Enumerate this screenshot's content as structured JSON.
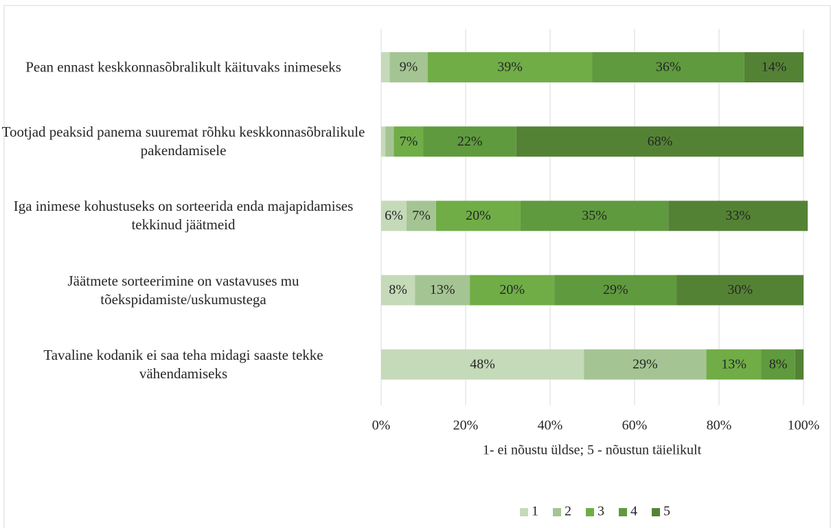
{
  "chart_data": {
    "type": "stacked_barh",
    "categories": [
      "Pean ennast keskkonnasõbralikult käituvaks inimeseks",
      "Tootjad peaksid panema suuremat rõhku keskkonnasõbralikule pakendamisele",
      "Iga inimese kohustuseks on sorteerida enda majapidamises tekkinud jäätmeid",
      "Jäätmete sorteerimine on vastavuses mu tõekspidamiste/uskumustega",
      "Tavaline kodanik ei saa teha midagi saaste tekke vähendamiseks"
    ],
    "series": [
      {
        "name": "1",
        "color": "#c5dab9",
        "values": [
          2,
          1,
          6,
          8,
          48
        ],
        "value_labels": [
          null,
          null,
          "6%",
          "8%",
          "48%"
        ]
      },
      {
        "name": "2",
        "color": "#a4c593",
        "values": [
          9,
          2,
          7,
          13,
          29
        ],
        "value_labels": [
          "9%",
          null,
          "7%",
          "13%",
          "29%"
        ]
      },
      {
        "name": "3",
        "color": "#70ad47",
        "values": [
          39,
          7,
          20,
          20,
          13
        ],
        "value_labels": [
          "39%",
          "7%",
          "20%",
          "20%",
          "13%"
        ]
      },
      {
        "name": "4",
        "color": "#5f9a3e",
        "values": [
          36,
          22,
          35,
          29,
          8
        ],
        "value_labels": [
          "36%",
          "22%",
          "35%",
          "29%",
          "8%"
        ]
      },
      {
        "name": "5",
        "color": "#548235",
        "values": [
          14,
          68,
          33,
          30,
          2
        ],
        "value_labels": [
          "14%",
          "68%",
          "33%",
          "30%",
          null
        ]
      }
    ],
    "xlabel": "1- ei nõustu üldse; 5 - nõustun täielikult",
    "xlim": [
      0,
      100
    ],
    "xticks": [
      {
        "value": 0,
        "label": "0%"
      },
      {
        "value": 20,
        "label": "20%"
      },
      {
        "value": 40,
        "label": "40%"
      },
      {
        "value": 60,
        "label": "60%"
      },
      {
        "value": 80,
        "label": "80%"
      },
      {
        "value": 100,
        "label": "100%"
      }
    ],
    "grid": true,
    "legend": "bottom"
  }
}
